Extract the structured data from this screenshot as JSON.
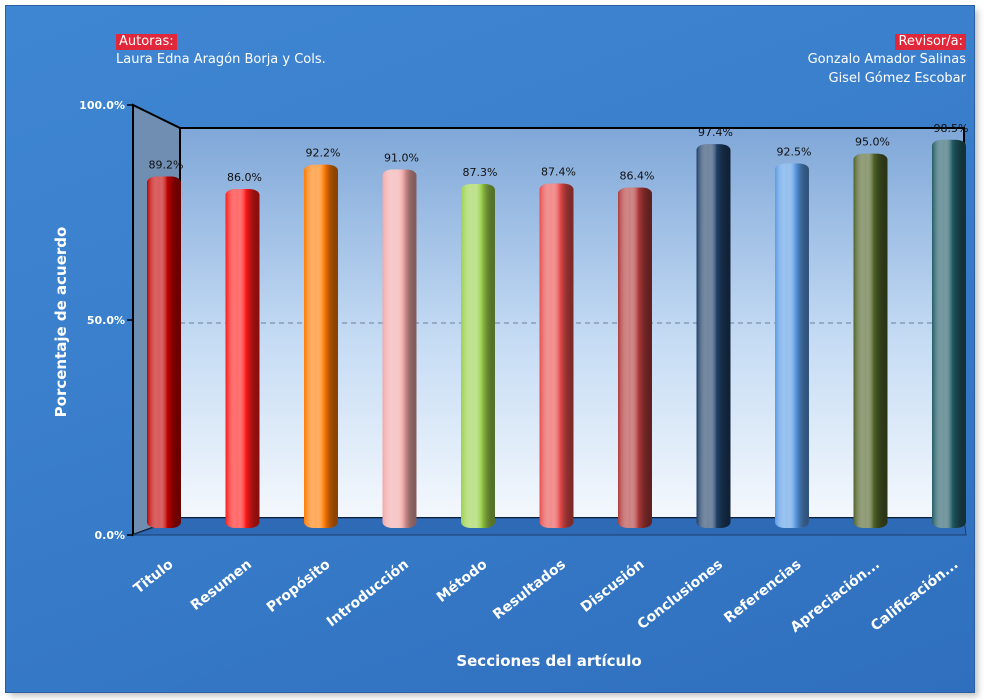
{
  "header": {
    "authors_tag": "Autoras:",
    "authors": "Laura Edna Aragón Borja y Cols.",
    "reviewer_tag": "Revisor/a:",
    "reviewers": [
      "Gonzalo Amador Salinas",
      "Gisel Gómez Escobar"
    ]
  },
  "chart_data": {
    "type": "bar",
    "title": "",
    "xlabel": "Secciones del artículo",
    "ylabel": "Porcentaje de acuerdo",
    "ylim": [
      0,
      100
    ],
    "yticks": [
      "0.0%",
      "50.0%",
      "100.0%"
    ],
    "categories": [
      "Titulo",
      "Resumen",
      "Propósito",
      "Introducción",
      "Método",
      "Resultados",
      "Discusión",
      "Conclusiones",
      "Referencias",
      "Apreciación...",
      "Calificación..."
    ],
    "values": [
      89.2,
      86.0,
      92.2,
      91.0,
      87.3,
      87.4,
      86.4,
      97.4,
      92.5,
      95.0,
      98.5
    ],
    "value_labels": [
      "89.2%",
      "86.0%",
      "92.2%",
      "91.0%",
      "87.3%",
      "87.4%",
      "86.4%",
      "97.4%",
      "92.5%",
      "95.0%",
      "98.5%"
    ],
    "colors": [
      "#c00000",
      "#ff1a1a",
      "#ff7a00",
      "#f2a8a8",
      "#9ad04a",
      "#e84c4c",
      "#b03a3a",
      "#1f3f66",
      "#5a9be6",
      "#4f6228",
      "#225b66"
    ],
    "gridline": 50
  }
}
